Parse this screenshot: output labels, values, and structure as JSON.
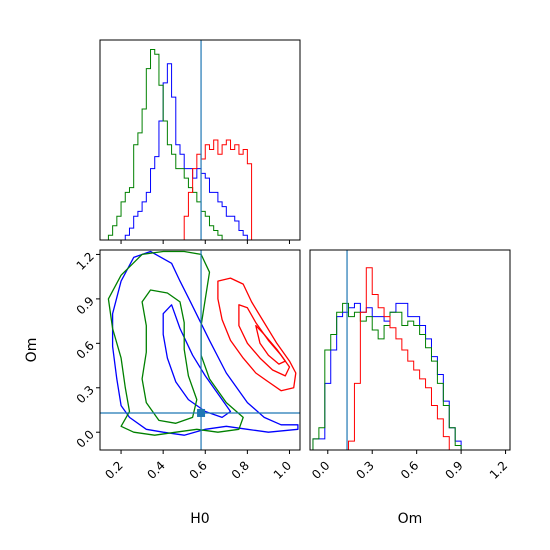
{
  "chart_data": {
    "type": "corner",
    "parameters": [
      "H0",
      "Om"
    ],
    "truth": {
      "H0": 0.58,
      "Om": 0.13
    },
    "colors": {
      "run1": "#0000ff",
      "run2": "#008000",
      "run3": "#ff0000",
      "truth": "#1f77b4"
    },
    "ranges": {
      "H0": [
        0.1,
        1.05
      ],
      "Om": [
        -0.12,
        1.23
      ]
    },
    "ticks": {
      "H0": [
        0.2,
        0.4,
        0.6,
        0.8,
        1.0
      ],
      "H0_labels": [
        "0.2",
        "0.4",
        "0.6",
        "0.8",
        "1.0"
      ],
      "Om": [
        0.0,
        0.3,
        0.6,
        0.9,
        1.2
      ],
      "Om_labels": [
        "0.0",
        "0.3",
        "0.6",
        "0.9",
        "1.2"
      ]
    },
    "xlabels": {
      "H0": "H0",
      "Om": "Om"
    },
    "ylabel": "Om",
    "hist_H0": {
      "edges_start": 0.1,
      "bin_width": 0.02,
      "series": [
        {
          "key": "run1",
          "counts": [
            0,
            0,
            0,
            0,
            0,
            0,
            0.02,
            0.05,
            0.1,
            0.12,
            0.16,
            0.2,
            0.3,
            0.35,
            0.5,
            0.66,
            0.74,
            0.6,
            0.4,
            0.36,
            0.3,
            0.3,
            0.26,
            0.3,
            0.28,
            0.26,
            0.2,
            0.2,
            0.16,
            0.14,
            0.1,
            0.1,
            0.08,
            0.04,
            0.02,
            0
          ]
        },
        {
          "key": "run2",
          "counts": [
            0,
            0,
            0.02,
            0.06,
            0.1,
            0.16,
            0.2,
            0.22,
            0.4,
            0.45,
            0.55,
            0.72,
            0.8,
            0.78,
            0.65,
            0.5,
            0.4,
            0.36,
            0.3,
            0.3,
            0.26,
            0.22,
            0.2,
            0.16,
            0.12,
            0.1,
            0.06,
            0.04,
            0.02,
            0,
            0,
            0,
            0,
            0,
            0,
            0
          ]
        },
        {
          "key": "run3",
          "counts": [
            0,
            0,
            0,
            0,
            0,
            0,
            0,
            0,
            0,
            0,
            0,
            0,
            0,
            0,
            0,
            0,
            0,
            0,
            0,
            0,
            0.1,
            0.2,
            0.3,
            0.36,
            0.34,
            0.4,
            0.38,
            0.42,
            0.36,
            0.4,
            0.42,
            0.38,
            0.4,
            0.36,
            0.38,
            0.32
          ]
        }
      ],
      "ymax": 0.84
    },
    "hist_Om": {
      "edges_start": -0.1,
      "bin_width": 0.04,
      "series": [
        {
          "key": "run1",
          "counts": [
            0.05,
            0.05,
            0.3,
            0.45,
            0.6,
            0.62,
            0.64,
            0.66,
            0.62,
            0.64,
            0.6,
            0.6,
            0.58,
            0.62,
            0.66,
            0.66,
            0.6,
            0.6,
            0.56,
            0.5,
            0.42,
            0.34,
            0.22,
            0.1,
            0.04,
            0
          ]
        },
        {
          "key": "run2",
          "counts": [
            0.05,
            0.1,
            0.45,
            0.52,
            0.62,
            0.66,
            0.6,
            0.62,
            0.58,
            0.6,
            0.54,
            0.5,
            0.56,
            0.62,
            0.62,
            0.56,
            0.58,
            0.56,
            0.52,
            0.46,
            0.4,
            0.3,
            0.2,
            0.1,
            0.02,
            0
          ]
        },
        {
          "key": "run3",
          "counts": [
            0,
            0,
            0,
            0,
            0,
            0,
            0.04,
            0.3,
            0.62,
            0.82,
            0.7,
            0.64,
            0.6,
            0.55,
            0.5,
            0.45,
            0.4,
            0.36,
            0.32,
            0.28,
            0.2,
            0.14,
            0.06,
            0,
            0,
            0
          ]
        }
      ],
      "ymax": 0.9
    },
    "contours": [
      {
        "key": "run1",
        "points": [
          [
            0.34,
            1.22
          ],
          [
            0.44,
            1.14
          ],
          [
            0.48,
            1.02
          ],
          [
            0.53,
            0.88
          ],
          [
            0.62,
            0.62
          ],
          [
            0.7,
            0.4
          ],
          [
            0.8,
            0.2
          ],
          [
            0.88,
            0.1
          ],
          [
            0.96,
            0.05
          ],
          [
            1.04,
            0.05
          ],
          [
            1.04,
            0.02
          ],
          [
            0.9,
            0.0
          ],
          [
            0.8,
            0.02
          ],
          [
            0.7,
            0.04
          ],
          [
            0.6,
            0.02
          ],
          [
            0.5,
            -0.02
          ],
          [
            0.4,
            0.0
          ],
          [
            0.32,
            0.02
          ],
          [
            0.24,
            0.1
          ],
          [
            0.2,
            0.18
          ],
          [
            0.18,
            0.36
          ],
          [
            0.16,
            0.58
          ],
          [
            0.16,
            0.8
          ],
          [
            0.2,
            1.02
          ],
          [
            0.26,
            1.18
          ]
        ]
      },
      {
        "key": "run1",
        "points": [
          [
            0.44,
            0.86
          ],
          [
            0.48,
            0.7
          ],
          [
            0.54,
            0.52
          ],
          [
            0.6,
            0.38
          ],
          [
            0.68,
            0.22
          ],
          [
            0.72,
            0.14
          ],
          [
            0.68,
            0.1
          ],
          [
            0.6,
            0.14
          ],
          [
            0.52,
            0.22
          ],
          [
            0.46,
            0.34
          ],
          [
            0.42,
            0.5
          ],
          [
            0.4,
            0.66
          ],
          [
            0.4,
            0.8
          ]
        ]
      },
      {
        "key": "run2",
        "points": [
          [
            0.3,
            1.2
          ],
          [
            0.4,
            1.22
          ],
          [
            0.5,
            1.22
          ],
          [
            0.58,
            1.2
          ],
          [
            0.62,
            1.08
          ],
          [
            0.6,
            0.9
          ],
          [
            0.58,
            0.72
          ],
          [
            0.58,
            0.52
          ],
          [
            0.62,
            0.36
          ],
          [
            0.7,
            0.2
          ],
          [
            0.78,
            0.1
          ],
          [
            0.76,
            0.02
          ],
          [
            0.66,
            0.0
          ],
          [
            0.56,
            0.02
          ],
          [
            0.46,
            0.0
          ],
          [
            0.36,
            -0.02
          ],
          [
            0.26,
            0.0
          ],
          [
            0.2,
            0.04
          ],
          [
            0.24,
            0.14
          ],
          [
            0.22,
            0.3
          ],
          [
            0.2,
            0.5
          ],
          [
            0.16,
            0.7
          ],
          [
            0.14,
            0.9
          ],
          [
            0.2,
            1.06
          ]
        ]
      },
      {
        "key": "run2",
        "points": [
          [
            0.34,
            0.96
          ],
          [
            0.42,
            0.94
          ],
          [
            0.48,
            0.88
          ],
          [
            0.5,
            0.74
          ],
          [
            0.5,
            0.56
          ],
          [
            0.52,
            0.38
          ],
          [
            0.56,
            0.22
          ],
          [
            0.54,
            0.1
          ],
          [
            0.46,
            0.06
          ],
          [
            0.38,
            0.08
          ],
          [
            0.32,
            0.2
          ],
          [
            0.3,
            0.36
          ],
          [
            0.32,
            0.54
          ],
          [
            0.32,
            0.72
          ],
          [
            0.3,
            0.88
          ]
        ]
      },
      {
        "key": "run3",
        "points": [
          [
            0.66,
            1.02
          ],
          [
            0.72,
            1.04
          ],
          [
            0.78,
            1.0
          ],
          [
            0.82,
            0.88
          ],
          [
            0.88,
            0.74
          ],
          [
            0.94,
            0.6
          ],
          [
            1.0,
            0.48
          ],
          [
            1.03,
            0.4
          ],
          [
            1.02,
            0.3
          ],
          [
            0.96,
            0.28
          ],
          [
            0.9,
            0.34
          ],
          [
            0.84,
            0.4
          ],
          [
            0.78,
            0.5
          ],
          [
            0.72,
            0.62
          ],
          [
            0.68,
            0.76
          ],
          [
            0.66,
            0.9
          ]
        ]
      },
      {
        "key": "run3",
        "points": [
          [
            0.76,
            0.86
          ],
          [
            0.8,
            0.84
          ],
          [
            0.84,
            0.74
          ],
          [
            0.9,
            0.62
          ],
          [
            0.96,
            0.52
          ],
          [
            1.0,
            0.44
          ],
          [
            0.98,
            0.38
          ],
          [
            0.92,
            0.42
          ],
          [
            0.86,
            0.5
          ],
          [
            0.8,
            0.6
          ],
          [
            0.76,
            0.72
          ]
        ]
      },
      {
        "key": "run3",
        "points": [
          [
            0.84,
            0.72
          ],
          [
            0.88,
            0.66
          ],
          [
            0.94,
            0.56
          ],
          [
            0.98,
            0.48
          ],
          [
            0.95,
            0.46
          ],
          [
            0.9,
            0.52
          ],
          [
            0.86,
            0.6
          ]
        ]
      }
    ]
  }
}
